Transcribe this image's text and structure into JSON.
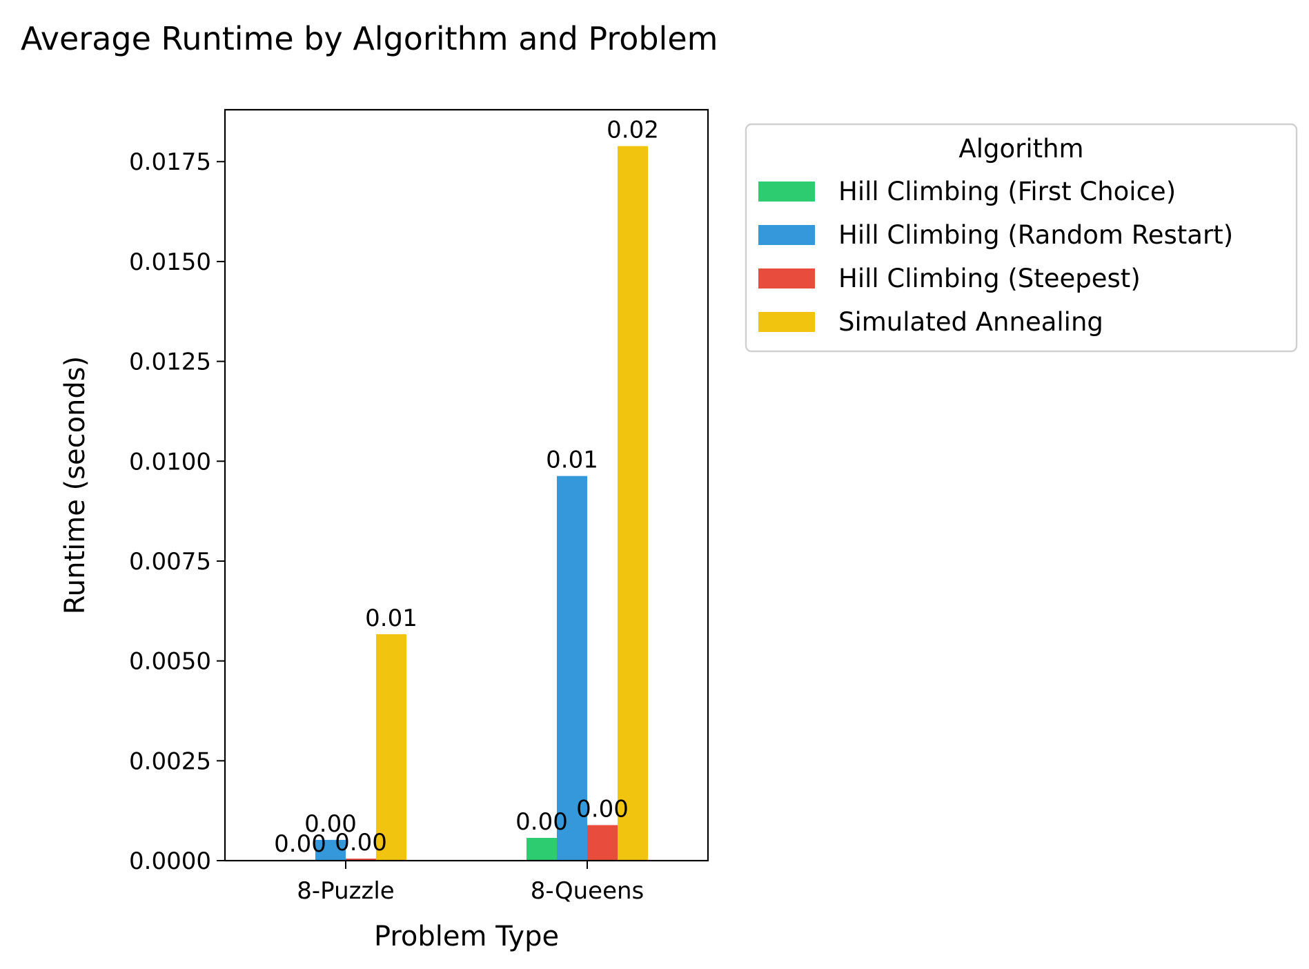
{
  "chart_data": {
    "type": "bar",
    "title": "Average Runtime by Algorithm and Problem",
    "xlabel": "Problem Type",
    "ylabel": "Runtime (seconds)",
    "categories": [
      "8-Puzzle",
      "8-Queens"
    ],
    "ylim": [
      0,
      0.0188
    ],
    "yticks": [
      "0.0000",
      "0.0025",
      "0.0050",
      "0.0075",
      "0.0100",
      "0.0125",
      "0.0150",
      "0.0175"
    ],
    "ytick_values": [
      0,
      0.0025,
      0.005,
      0.0075,
      0.01,
      0.0125,
      0.015,
      0.0175
    ],
    "legend": {
      "title": "Algorithm",
      "position": "outside-right-top"
    },
    "series": [
      {
        "name": "Hill Climbing (First Choice)",
        "color": "#2ecc71",
        "values": [
          2e-05,
          0.00057
        ],
        "labels": [
          "0.00",
          "0.00"
        ]
      },
      {
        "name": "Hill Climbing (Random Restart)",
        "color": "#3498db",
        "values": [
          0.00052,
          0.00963
        ],
        "labels": [
          "0.00",
          "0.01"
        ]
      },
      {
        "name": "Hill Climbing (Steepest)",
        "color": "#e74c3c",
        "values": [
          5e-05,
          0.00089
        ],
        "labels": [
          "0.00",
          "0.00"
        ]
      },
      {
        "name": "Simulated Annealing",
        "color": "#f1c40f",
        "values": [
          0.00567,
          0.01789
        ],
        "labels": [
          "0.01",
          "0.02"
        ]
      }
    ]
  }
}
